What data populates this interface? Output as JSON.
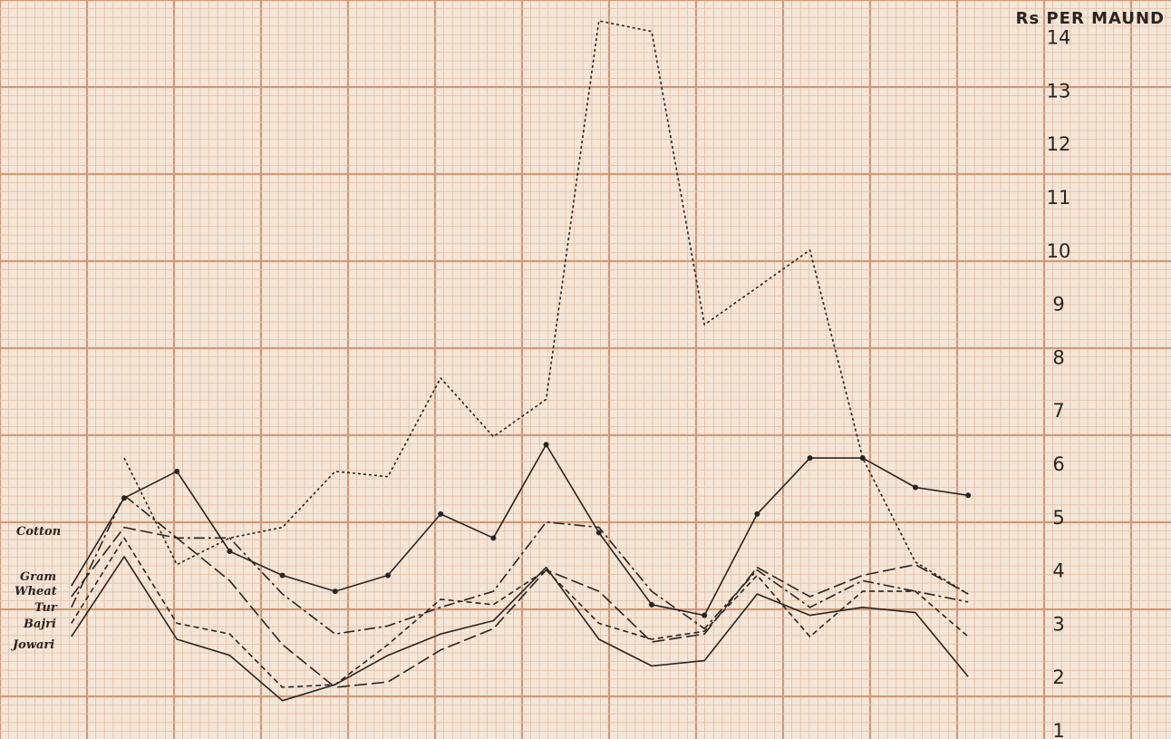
{
  "chart_data": {
    "type": "line",
    "title": "",
    "xlabel": "",
    "ylabel": "Rs PER MAUND",
    "ylim": [
      1,
      14.5
    ],
    "y_ticks": [
      1,
      2,
      3,
      4,
      5,
      6,
      7,
      8,
      9,
      10,
      11,
      12,
      13,
      14
    ],
    "grid": true,
    "colors": {
      "paper": "#f4e6d8",
      "grid_minor": "#e3bfa4",
      "grid_major": "#cf9a78",
      "ink": "#2a2420"
    },
    "series": [
      {
        "name": "Cotton",
        "style": "dotted",
        "x": [
          0,
          1,
          2,
          3,
          4,
          5,
          6,
          7,
          8,
          9,
          10,
          11,
          12,
          13,
          14,
          15,
          16
        ],
        "values": [
          6.1,
          4.1,
          4.6,
          4.8,
          5.85,
          5.75,
          7.6,
          6.5,
          7.2,
          14.3,
          14.1,
          8.6,
          9.3,
          10.0,
          6.1,
          4.15,
          3.55
        ]
      },
      {
        "name": "Gram",
        "style": "solid-dots",
        "x": [
          -1,
          0,
          1,
          2,
          3,
          4,
          5,
          6,
          7,
          8,
          9,
          10,
          11,
          12,
          13,
          14,
          15,
          16
        ],
        "values": [
          3.7,
          5.35,
          5.85,
          4.35,
          3.9,
          3.6,
          3.9,
          5.05,
          4.6,
          6.35,
          4.7,
          3.35,
          3.15,
          5.05,
          6.1,
          6.1,
          5.55,
          5.4
        ]
      },
      {
        "name": "Wheat",
        "style": "long-dash",
        "x": [
          -1,
          0,
          1,
          2,
          3,
          4,
          5,
          6,
          7,
          8,
          9,
          10,
          11,
          12,
          13,
          14,
          15,
          16
        ],
        "values": [
          3.5,
          4.8,
          4.6,
          3.8,
          2.6,
          1.8,
          1.9,
          2.5,
          2.9,
          4.0,
          3.6,
          2.65,
          2.8,
          4.05,
          3.5,
          3.9,
          4.1,
          3.55
        ]
      },
      {
        "name": "Tur",
        "style": "dash-dot",
        "x": [
          -1,
          0,
          1,
          2,
          3,
          4,
          5,
          6,
          7,
          8,
          9,
          10,
          11,
          12,
          13,
          14,
          15,
          16
        ],
        "values": [
          3.3,
          5.4,
          4.6,
          4.6,
          3.55,
          2.8,
          2.95,
          3.3,
          3.6,
          4.9,
          4.8,
          3.6,
          2.9,
          4.0,
          3.3,
          3.8,
          3.6,
          3.4
        ]
      },
      {
        "name": "Bajri",
        "style": "dashed",
        "x": [
          -1,
          0,
          1,
          2,
          3,
          4,
          5,
          6,
          7,
          8,
          9,
          10,
          11,
          12,
          13,
          14,
          15,
          16
        ],
        "values": [
          3.0,
          4.6,
          3.0,
          2.8,
          1.8,
          1.85,
          2.6,
          3.45,
          3.35,
          4.0,
          3.0,
          2.7,
          2.85,
          3.9,
          2.75,
          3.6,
          3.6,
          2.75
        ]
      },
      {
        "name": "Jowari",
        "style": "solid",
        "x": [
          -1,
          0,
          1,
          2,
          3,
          4,
          5,
          6,
          7,
          8,
          9,
          10,
          11,
          12,
          13,
          14,
          15,
          16
        ],
        "values": [
          2.75,
          4.25,
          2.7,
          2.4,
          1.55,
          1.85,
          2.4,
          2.8,
          3.05,
          4.05,
          2.7,
          2.2,
          2.3,
          3.55,
          3.15,
          3.3,
          3.2,
          2.0
        ]
      }
    ]
  }
}
